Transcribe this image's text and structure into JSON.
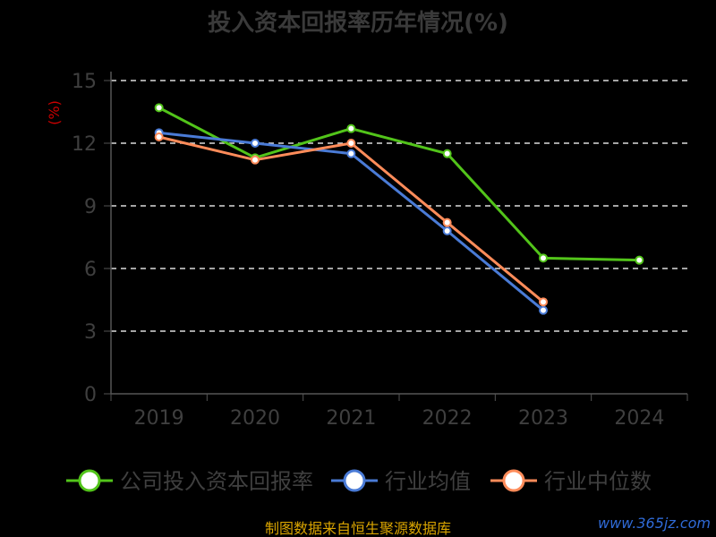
{
  "chart_data": {
    "type": "line",
    "title": "投入资本回报率历年情况(%)",
    "ylabel": "(%)",
    "ylim": [
      0,
      15
    ],
    "yticks": [
      0,
      3,
      6,
      9,
      12,
      15
    ],
    "categories": [
      "2019",
      "2020",
      "2021",
      "2022",
      "2023",
      "2024"
    ],
    "grid": true,
    "legend_position": "bottom",
    "series": [
      {
        "name": "公司投入资本回报率",
        "color": "#52c41a",
        "values": [
          13.7,
          11.3,
          12.7,
          11.5,
          6.5,
          6.4
        ]
      },
      {
        "name": "行业均值",
        "color": "#4a7bd6",
        "values": [
          12.5,
          12.0,
          11.5,
          7.8,
          4.0,
          null
        ]
      },
      {
        "name": "行业中位数",
        "color": "#ff8c5a",
        "values": [
          12.3,
          11.2,
          12.0,
          8.2,
          4.4,
          null
        ]
      }
    ]
  },
  "footer": {
    "source": "制图数据来自恒生聚源数据库",
    "watermark": "www.365jz.com"
  }
}
